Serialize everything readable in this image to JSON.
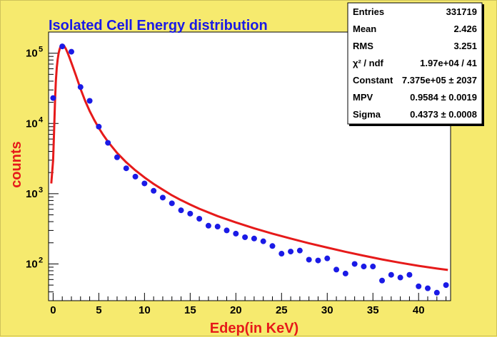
{
  "chart_data": {
    "type": "scatter",
    "title": "Isolated Cell Energy distribution",
    "xlabel": "Edep(in KeV)",
    "ylabel": "counts",
    "xlim": [
      -0.5,
      43.5
    ],
    "ylim": [
      30,
      200000
    ],
    "yscale": "log",
    "grid": false,
    "x_ticks": [
      0,
      5,
      10,
      15,
      20,
      25,
      30,
      35,
      40
    ],
    "y_ticks": [
      {
        "value": 100,
        "mantissa": "10",
        "exp": "2"
      },
      {
        "value": 1000,
        "mantissa": "10",
        "exp": "3"
      },
      {
        "value": 10000,
        "mantissa": "10",
        "exp": "4"
      },
      {
        "value": 100000,
        "mantissa": "10",
        "exp": "5"
      }
    ],
    "colors": {
      "points": "#1a1ae6",
      "fit": "#e61a1a",
      "title": "#1a1ae6",
      "axis_title": "#e61a1a",
      "background": "#f6ea6e",
      "frame": "#ffffff"
    },
    "series": [
      {
        "type": "scatter",
        "x": [
          0,
          1,
          2,
          3,
          4,
          5,
          6,
          7,
          8,
          9,
          10,
          11,
          12,
          13,
          14,
          15,
          16,
          17,
          18,
          19,
          20,
          21,
          22,
          23,
          24,
          25,
          26,
          27,
          28,
          29,
          30,
          31,
          32,
          33,
          34,
          35,
          36,
          37,
          38,
          39,
          40,
          41,
          42,
          43
        ],
        "y": [
          23000,
          125000,
          105000,
          33000,
          21000,
          9000,
          5300,
          3300,
          2300,
          1750,
          1400,
          1100,
          880,
          730,
          580,
          520,
          440,
          350,
          340,
          300,
          270,
          240,
          230,
          210,
          180,
          140,
          150,
          155,
          115,
          112,
          120,
          83,
          73,
          100,
          92,
          92,
          58,
          70,
          64,
          70,
          48,
          45,
          39,
          50
        ]
      },
      {
        "type": "line",
        "x": [
          -0.2,
          0.0,
          0.1,
          0.2,
          0.3,
          0.4,
          0.5,
          0.6,
          0.7,
          0.8,
          0.9,
          1.0,
          1.1,
          1.2,
          1.4,
          1.6,
          1.8,
          2.0,
          2.2,
          2.5,
          2.8,
          3.0,
          3.5,
          4.0,
          4.5,
          5.0,
          5.5,
          6.0,
          7.0,
          8.0,
          9.0,
          10.0,
          11.0,
          12.0,
          13.0,
          14.0,
          15.0,
          16.0,
          18.0,
          20.0,
          22.0,
          24.0,
          26.0,
          28.0,
          30.0,
          32.0,
          34.0,
          36.0,
          38.0,
          40.0,
          42.0,
          43.2
        ],
        "y": [
          1400,
          3000,
          7500,
          20000,
          40000,
          62000,
          82000,
          100000,
          113000,
          123000,
          129000,
          132000,
          131000,
          127000,
          115000,
          100000,
          86000,
          73000,
          62000,
          48000,
          37000,
          31000,
          21000,
          15000,
          11200,
          8600,
          6800,
          5500,
          3800,
          2800,
          2150,
          1700,
          1380,
          1140,
          950,
          810,
          700,
          610,
          480,
          390,
          322,
          270,
          230,
          197,
          171,
          149,
          131,
          116,
          104,
          94,
          86,
          82
        ]
      }
    ]
  },
  "stats_box": {
    "rows": [
      {
        "label": "Entries",
        "value": "331719"
      },
      {
        "label": "Mean",
        "value": "2.426"
      },
      {
        "label": "RMS",
        "value": "3.251"
      },
      {
        "label": "χ² / ndf",
        "value": "1.97e+04 / 41"
      },
      {
        "label": "Constant",
        "value": "7.375e+05 ± 2037"
      },
      {
        "label": "MPV",
        "value": "0.9584 ± 0.0019"
      },
      {
        "label": "Sigma",
        "value": "0.4373 ± 0.0008"
      }
    ]
  }
}
